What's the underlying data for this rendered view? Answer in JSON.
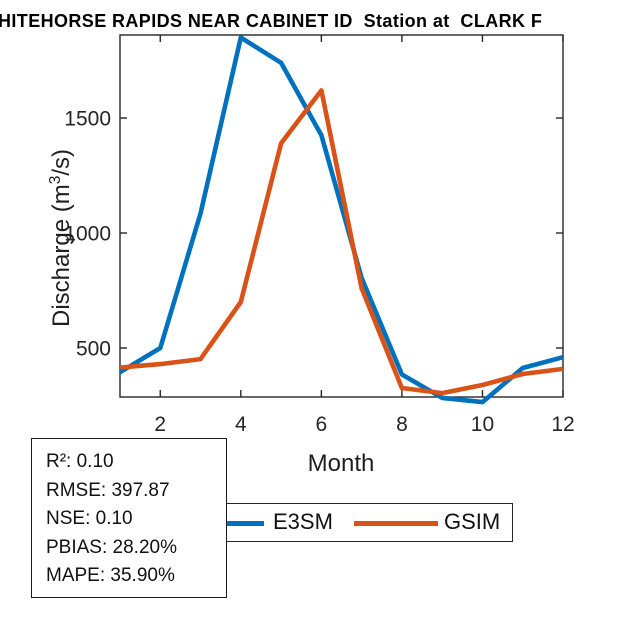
{
  "title": "HITEHORSE RAPIDS NEAR CABINET ID  Station at  CLARK F",
  "chart_data": {
    "type": "line",
    "x": [
      1,
      2,
      3,
      4,
      5,
      6,
      7,
      8,
      9,
      10,
      11,
      12
    ],
    "series": [
      {
        "name": "E3SM",
        "color": "#0072BD",
        "values": [
          395,
          500,
          1085,
          1850,
          1740,
          1425,
          805,
          385,
          283,
          265,
          413,
          460
        ]
      },
      {
        "name": "GSIM",
        "color": "#D95319",
        "values": [
          415,
          430,
          452,
          700,
          1390,
          1620,
          760,
          326,
          304,
          339,
          387,
          409
        ]
      }
    ],
    "xlabel": "Month",
    "ylabel": "Discharge (m³/s)",
    "xticks": [
      2,
      4,
      6,
      8,
      10,
      12
    ],
    "yticks": [
      500,
      1000,
      1500
    ],
    "xlim": [
      1,
      12
    ],
    "ylim": [
      287,
      1861
    ],
    "grid": false,
    "legend_position": "south-horizontal",
    "axis_color": "#262626",
    "line_width": 4.6
  },
  "ylabel_parts": {
    "pre": "Discharge (m",
    "sup": "3",
    "post": "/s)"
  },
  "legend": {
    "items": [
      {
        "label": "E3SM",
        "color": "#0072BD"
      },
      {
        "label": "GSIM",
        "color": "#D95319"
      }
    ]
  },
  "stats_box": {
    "lines": [
      "R²: 0.10",
      "RMSE: 397.87",
      "NSE: 0.10",
      "PBIAS: 28.20%",
      "MAPE: 35.90%"
    ]
  }
}
